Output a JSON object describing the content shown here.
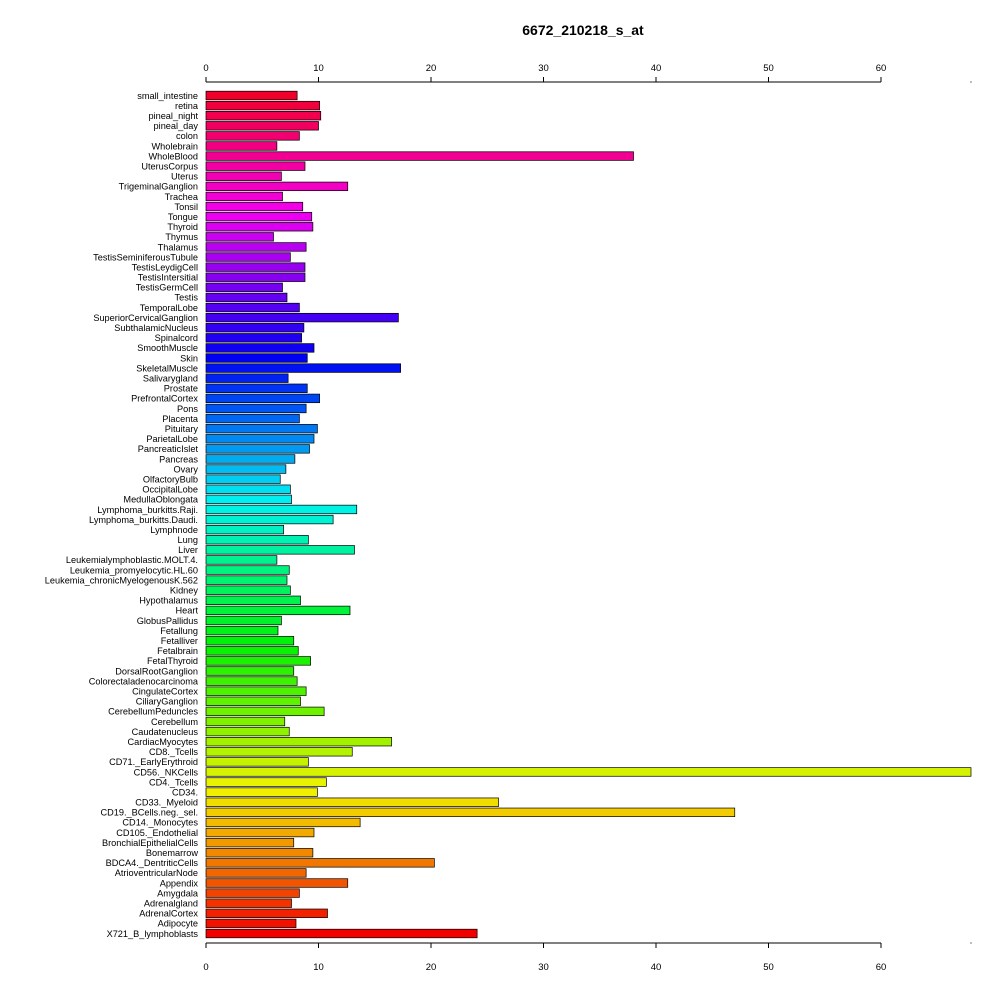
{
  "chart_data": {
    "type": "bar",
    "orientation": "horizontal",
    "title": "6672_210218_s_at",
    "xlim": [
      0,
      68
    ],
    "x_ticks": [
      0,
      10,
      20,
      30,
      40,
      50,
      60
    ],
    "x_tick_labels": [
      "0",
      "10",
      "20",
      "30",
      "40",
      "50",
      "60"
    ],
    "axes": "top-and-bottom",
    "grid": false,
    "bar_colors": "rainbow gradient, red (top) through magenta, blue, cyan, green, yellow, orange to red (bottom)",
    "categories": [
      "small_intestine",
      "retina",
      "pineal_night",
      "pineal_day",
      "colon",
      "Wholebrain",
      "WholeBlood",
      "UterusCorpus",
      "Uterus",
      "TrigeminalGanglion",
      "Trachea",
      "Tonsil",
      "Tongue",
      "Thyroid",
      "Thymus",
      "Thalamus",
      "TestisSeminiferousTubule",
      "TestisLeydigCell",
      "TestisIntersitial",
      "TestisGermCell",
      "Testis",
      "TemporalLobe",
      "SuperiorCervicalGanglion",
      "SubthalamicNucleus",
      "Spinalcord",
      "SmoothMuscle",
      "Skin",
      "SkeletalMuscle",
      "Salivarygland",
      "Prostate",
      "PrefrontalCortex",
      "Pons",
      "Placenta",
      "Pituitary",
      "ParietalLobe",
      "PancreaticIslet",
      "Pancreas",
      "Ovary",
      "OlfactoryBulb",
      "OccipitalLobe",
      "MedullaOblongata",
      "Lymphoma_burkitts.Raji.",
      "Lymphoma_burkitts.Daudi.",
      "Lymphnode",
      "Lung",
      "Liver",
      "Leukemialymphoblastic.MOLT.4.",
      "Leukemia_promyelocytic.HL.60",
      "Leukemia_chronicMyelogenousK.562",
      "Kidney",
      "Hypothalamus",
      "Heart",
      "GlobusPallidus",
      "Fetallung",
      "Fetalliver",
      "Fetalbrain",
      "FetalThyroid",
      "DorsalRootGanglion",
      "Colorectaladenocarcinoma",
      "CingulateCortex",
      "CiliaryGanglion",
      "CerebellumPeduncles",
      "Cerebellum",
      "Caudatenucleus",
      "CardiacMyocytes",
      "CD8._Tcells",
      "CD71._EarlyErythroid",
      "CD56._NKCells",
      "CD4._Tcells",
      "CD34.",
      "CD33._Myeloid",
      "CD19._BCells.neg._sel.",
      "CD14._Monocytes",
      "CD105._Endothelial",
      "BronchialEpithelialCells",
      "Bonemarrow",
      "BDCA4._DentriticCells",
      "AtrioventricularNode",
      "Appendix",
      "Amygdala",
      "Adrenalgland",
      "AdrenalCortex",
      "Adipocyte",
      "X721_B_lymphoblasts"
    ],
    "values": [
      8.1,
      10.1,
      10.2,
      10.0,
      8.3,
      6.3,
      38.0,
      8.8,
      6.7,
      12.6,
      6.8,
      8.6,
      9.4,
      9.5,
      6.0,
      8.9,
      7.5,
      8.8,
      8.8,
      6.8,
      7.2,
      8.3,
      17.1,
      8.7,
      8.5,
      9.6,
      9.0,
      17.3,
      7.3,
      9.0,
      10.1,
      8.9,
      8.3,
      9.9,
      9.6,
      9.2,
      7.9,
      7.1,
      6.6,
      7.5,
      7.6,
      13.4,
      11.3,
      6.9,
      9.1,
      13.2,
      6.3,
      7.4,
      7.2,
      7.5,
      8.4,
      12.8,
      6.7,
      6.4,
      7.8,
      8.2,
      9.3,
      7.8,
      8.1,
      8.9,
      8.4,
      10.5,
      7.0,
      7.4,
      16.5,
      13.0,
      9.1,
      68.0,
      10.7,
      9.9,
      26.0,
      47.0,
      13.7,
      9.6,
      7.8,
      9.5,
      20.3,
      8.9,
      12.6,
      8.3,
      7.6,
      10.8,
      8.0,
      24.1
    ]
  }
}
